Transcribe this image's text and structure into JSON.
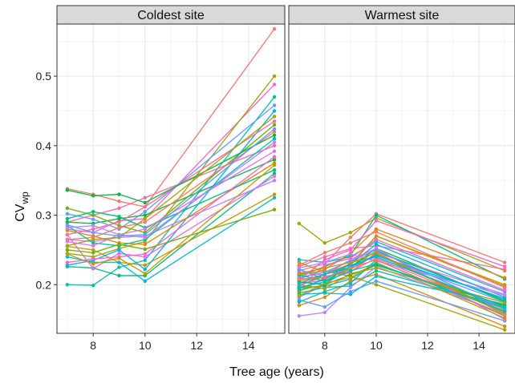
{
  "chart_data": {
    "type": "line",
    "xlabel": "Tree age (years)",
    "ylabel": {
      "main": "CV",
      "sub": "wp"
    },
    "xlim": [
      6.6,
      15.4
    ],
    "ylim": [
      0.13,
      0.575
    ],
    "x_ticks": [
      8,
      10,
      12,
      14
    ],
    "y_ticks": [
      0.2,
      0.3,
      0.4,
      0.5
    ],
    "grid": true,
    "legend": "none",
    "colors": [
      "#F8766D",
      "#E58700",
      "#C99800",
      "#A3A500",
      "#6BB100",
      "#00BA38",
      "#00BF7D",
      "#00C0AF",
      "#00BCD8",
      "#00B0F6",
      "#619CFF",
      "#B983FF",
      "#E76BF3",
      "#FD61D1",
      "#FF67A4"
    ],
    "panels": [
      {
        "title": "Coldest site",
        "series": [
          {
            "x": [
              7,
              8,
              9,
              10,
              15
            ],
            "values": [
              0.338,
              0.33,
              0.32,
              0.312,
              0.568
            ]
          },
          {
            "x": [
              7,
              8,
              9,
              10,
              15
            ],
            "values": [
              0.2,
              0.199,
              0.225,
              0.235,
              0.47
            ]
          },
          {
            "x": [
              7,
              8,
              9,
              10,
              15
            ],
            "values": [
              0.29,
              0.3,
              0.31,
              0.325,
              0.4
            ]
          },
          {
            "x": [
              7,
              8,
              9,
              10,
              15
            ],
            "values": [
              0.226,
              0.224,
              0.213,
              0.213,
              0.36
            ]
          },
          {
            "x": [
              7,
              8,
              9,
              10,
              15
            ],
            "values": [
              0.28,
              0.275,
              0.292,
              0.295,
              0.488
            ]
          },
          {
            "x": [
              7,
              8,
              9,
              10,
              15
            ],
            "values": [
              0.29,
              0.288,
              0.295,
              0.3,
              0.38
            ]
          },
          {
            "x": [
              7,
              8,
              9,
              10,
              15
            ],
            "values": [
              0.272,
              0.223,
              0.245,
              0.24,
              0.356
            ]
          },
          {
            "x": [
              7,
              8,
              9,
              10,
              15
            ],
            "values": [
              0.31,
              0.3,
              0.285,
              0.275,
              0.43
            ]
          },
          {
            "x": [
              7,
              8,
              9,
              10,
              15
            ],
            "values": [
              0.265,
              0.262,
              0.268,
              0.27,
              0.35
            ]
          },
          {
            "x": [
              7,
              8,
              9,
              10,
              15
            ],
            "values": [
              0.245,
              0.24,
              0.252,
              0.262,
              0.5
            ]
          },
          {
            "x": [
              7,
              8,
              9,
              10,
              15
            ],
            "values": [
              0.302,
              0.294,
              0.28,
              0.305,
              0.458
            ]
          },
          {
            "x": [
              7,
              8,
              9,
              10,
              15
            ],
            "values": [
              0.255,
              0.25,
              0.232,
              0.228,
              0.33
            ]
          },
          {
            "x": [
              7,
              8,
              9,
              10,
              15
            ],
            "values": [
              0.228,
              0.235,
              0.25,
              0.222,
              0.45
            ]
          },
          {
            "x": [
              7,
              8,
              9,
              10,
              15
            ],
            "values": [
              0.278,
              0.27,
              0.26,
              0.258,
              0.375
            ]
          },
          {
            "x": [
              7,
              8,
              9,
              10,
              15
            ],
            "values": [
              0.24,
              0.232,
              0.232,
              0.205,
              0.325
            ]
          },
          {
            "x": [
              7,
              8,
              9,
              10,
              15
            ],
            "values": [
              0.265,
              0.268,
              0.282,
              0.29,
              0.42
            ]
          },
          {
            "x": [
              7,
              8,
              9,
              10,
              15
            ],
            "values": [
              0.285,
              0.26,
              0.256,
              0.265,
              0.41
            ]
          },
          {
            "x": [
              7,
              8,
              9,
              10,
              15
            ],
            "values": [
              0.272,
              0.28,
              0.29,
              0.312,
              0.435
            ]
          },
          {
            "x": [
              7,
              8,
              9,
              10,
              15
            ],
            "values": [
              0.295,
              0.305,
              0.298,
              0.282,
              0.365
            ]
          },
          {
            "x": [
              7,
              8,
              9,
              10,
              15
            ],
            "values": [
              0.232,
              0.237,
              0.24,
              0.244,
              0.384
            ]
          },
          {
            "x": [
              7,
              8,
              9,
              10,
              15
            ],
            "values": [
              0.336,
              0.328,
              0.33,
              0.318,
              0.415
            ]
          },
          {
            "x": [
              7,
              8,
              9,
              10,
              15
            ],
            "values": [
              0.262,
              0.256,
              0.272,
              0.28,
              0.392
            ]
          },
          {
            "x": [
              7,
              8,
              9,
              10,
              15
            ],
            "values": [
              0.25,
              0.246,
              0.258,
              0.251,
              0.308
            ]
          },
          {
            "x": [
              7,
              8,
              9,
              10,
              15
            ],
            "values": [
              0.282,
              0.285,
              0.272,
              0.268,
              0.405
            ]
          },
          {
            "x": [
              7,
              8,
              9,
              10,
              15
            ],
            "values": [
              0.256,
              0.265,
              0.268,
              0.295,
              0.442
            ]
          },
          {
            "x": [
              7,
              8,
              9,
              10,
              15
            ],
            "values": [
              0.286,
              0.275,
              0.27,
              0.272,
              0.424
            ]
          },
          {
            "x": [
              7,
              8,
              9,
              10,
              15
            ],
            "values": [
              0.244,
              0.23,
              0.238,
              0.216,
              0.372
            ]
          }
        ]
      },
      {
        "title": "Warmest site",
        "series": [
          {
            "x": [
              7,
              8,
              9,
              10,
              15
            ],
            "values": [
              0.288,
              0.26,
              0.275,
              0.296,
              0.22
            ]
          },
          {
            "x": [
              7,
              8,
              9,
              10,
              15
            ],
            "values": [
              0.182,
              0.2,
              0.225,
              0.242,
              0.175
            ]
          },
          {
            "x": [
              7,
              8,
              9,
              10,
              15
            ],
            "values": [
              0.205,
              0.215,
              0.23,
              0.27,
              0.198
            ]
          },
          {
            "x": [
              7,
              8,
              9,
              10,
              15
            ],
            "values": [
              0.195,
              0.198,
              0.208,
              0.23,
              0.165
            ]
          },
          {
            "x": [
              7,
              8,
              9,
              10,
              15
            ],
            "values": [
              0.17,
              0.182,
              0.205,
              0.215,
              0.14
            ]
          },
          {
            "x": [
              7,
              8,
              9,
              10,
              15
            ],
            "values": [
              0.236,
              0.232,
              0.24,
              0.262,
              0.19
            ]
          },
          {
            "x": [
              7,
              8,
              9,
              10,
              15
            ],
            "values": [
              0.22,
              0.23,
              0.268,
              0.302,
              0.232
            ]
          },
          {
            "x": [
              7,
              8,
              9,
              10,
              15
            ],
            "values": [
              0.188,
              0.196,
              0.198,
              0.22,
              0.168
            ]
          },
          {
            "x": [
              7,
              8,
              9,
              10,
              15
            ],
            "values": [
              0.226,
              0.24,
              0.252,
              0.256,
              0.222
            ]
          },
          {
            "x": [
              7,
              8,
              9,
              10,
              15
            ],
            "values": [
              0.212,
              0.226,
              0.242,
              0.3,
              0.208
            ]
          },
          {
            "x": [
              7,
              8,
              9,
              10,
              15
            ],
            "values": [
              0.206,
              0.236,
              0.25,
              0.292,
              0.226
            ]
          },
          {
            "x": [
              7,
              8,
              9,
              10,
              15
            ],
            "values": [
              0.198,
              0.215,
              0.225,
              0.252,
              0.176
            ]
          },
          {
            "x": [
              7,
              8,
              9,
              10,
              15
            ],
            "values": [
              0.202,
              0.206,
              0.218,
              0.246,
              0.186
            ]
          },
          {
            "x": [
              7,
              8,
              9,
              10,
              15
            ],
            "values": [
              0.192,
              0.2,
              0.232,
              0.24,
              0.166
            ]
          },
          {
            "x": [
              7,
              8,
              9,
              10,
              15
            ],
            "values": [
              0.155,
              0.16,
              0.196,
              0.226,
              0.158
            ]
          },
          {
            "x": [
              7,
              8,
              9,
              10,
              15
            ],
            "values": [
              0.215,
              0.22,
              0.212,
              0.2,
              0.135
            ]
          },
          {
            "x": [
              7,
              8,
              9,
              10,
              15
            ],
            "values": [
              0.178,
              0.168,
              0.19,
              0.205,
              0.148
            ]
          },
          {
            "x": [
              7,
              8,
              9,
              10,
              15
            ],
            "values": [
              0.232,
              0.218,
              0.228,
              0.27,
              0.2
            ]
          },
          {
            "x": [
              7,
              8,
              9,
              10,
              15
            ],
            "values": [
              0.222,
              0.208,
              0.23,
              0.258,
              0.182
            ]
          },
          {
            "x": [
              7,
              8,
              9,
              10,
              15
            ],
            "values": [
              0.208,
              0.222,
              0.245,
              0.28,
              0.21
            ]
          },
          {
            "x": [
              7,
              8,
              9,
              10,
              15
            ],
            "values": [
              0.186,
              0.188,
              0.186,
              0.212,
              0.172
            ]
          },
          {
            "x": [
              7,
              8,
              9,
              10,
              15
            ],
            "values": [
              0.228,
              0.246,
              0.26,
              0.276,
              0.196
            ]
          },
          {
            "x": [
              7,
              8,
              9,
              10,
              15
            ],
            "values": [
              0.175,
              0.19,
              0.202,
              0.236,
              0.155
            ]
          },
          {
            "x": [
              7,
              8,
              9,
              10,
              15
            ],
            "values": [
              0.199,
              0.212,
              0.219,
              0.238,
              0.162
            ]
          },
          {
            "x": [
              7,
              8,
              9,
              10,
              15
            ],
            "values": [
              0.214,
              0.205,
              0.226,
              0.248,
              0.178
            ]
          },
          {
            "x": [
              7,
              8,
              9,
              10,
              15
            ],
            "values": [
              0.196,
              0.228,
              0.238,
              0.265,
              0.192
            ]
          },
          {
            "x": [
              7,
              8,
              9,
              10,
              15
            ],
            "values": [
              0.204,
              0.2,
              0.214,
              0.228,
              0.17
            ]
          },
          {
            "x": [
              7,
              8,
              9,
              10,
              15
            ],
            "values": [
              0.218,
              0.214,
              0.236,
              0.252,
              0.15
            ]
          },
          {
            "x": [
              7,
              8,
              9,
              10,
              15
            ],
            "values": [
              0.19,
              0.21,
              0.222,
              0.244,
              0.16
            ]
          },
          {
            "x": [
              7,
              8,
              9,
              10,
              15
            ],
            "values": [
              0.224,
              0.232,
              0.244,
              0.234,
              0.185
            ]
          },
          {
            "x": [
              7,
              8,
              9,
              10,
              15
            ],
            "values": [
              0.2,
              0.194,
              0.216,
              0.224,
              0.174
            ]
          },
          {
            "x": [
              7,
              8,
              9,
              10,
              15
            ],
            "values": [
              0.21,
              0.218,
              0.234,
              0.25,
              0.164
            ]
          },
          {
            "x": [
              7,
              8,
              9,
              10,
              15
            ],
            "values": [
              0.184,
              0.202,
              0.21,
              0.232,
              0.152
            ]
          },
          {
            "x": [
              7,
              8,
              9,
              10,
              15
            ],
            "values": [
              0.194,
              0.208,
              0.226,
              0.242,
              0.18
            ]
          },
          {
            "x": [
              7,
              8,
              9,
              10,
              15
            ],
            "values": [
              0.216,
              0.224,
              0.232,
              0.246,
              0.158
            ]
          },
          {
            "x": [
              7,
              8,
              9,
              10,
              15
            ],
            "values": [
              0.202,
              0.215,
              0.228,
              0.24,
              0.168
            ]
          },
          {
            "x": [
              7,
              8,
              9,
              10,
              15
            ],
            "values": [
              0.208,
              0.21,
              0.224,
              0.236,
              0.156
            ]
          },
          {
            "x": [
              7,
              8,
              9,
              10,
              15
            ],
            "values": [
              0.196,
              0.204,
              0.22,
              0.23,
              0.162
            ]
          }
        ]
      }
    ]
  }
}
